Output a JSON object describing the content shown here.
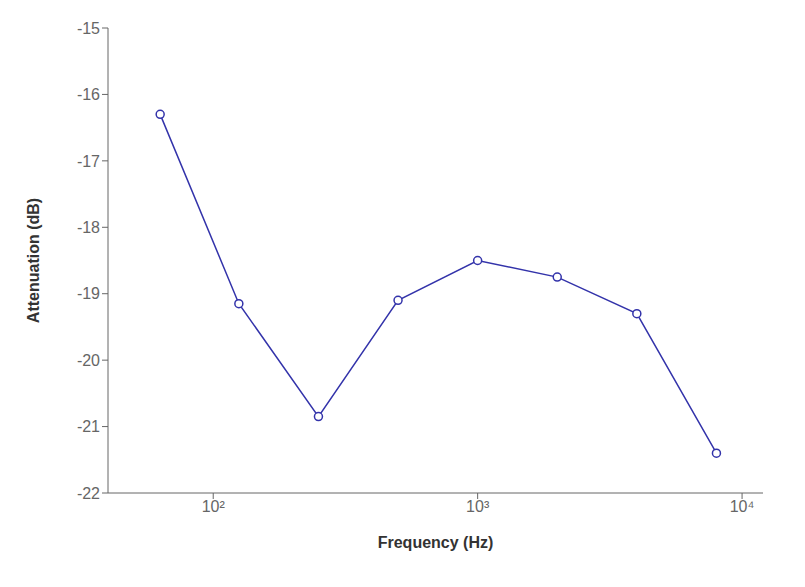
{
  "chart_data": {
    "type": "line",
    "x": [
      63,
      125,
      250,
      500,
      1000,
      2000,
      4000,
      8000
    ],
    "values": [
      -16.3,
      -19.15,
      -20.85,
      -19.1,
      -18.5,
      -18.75,
      -19.3,
      -21.4
    ],
    "color": "#3333AA",
    "marker": "circle",
    "xlabel": "Frequency (Hz)",
    "ylabel": "Attenuation (dB)",
    "xlim": [
      40,
      12000
    ],
    "ylim": [
      -22,
      -15
    ],
    "xticks": [
      {
        "value": 100,
        "label": "10²"
      },
      {
        "value": 1000,
        "label": "10³"
      },
      {
        "value": 10000,
        "label": "10⁴"
      }
    ],
    "yticks": [
      -22,
      -21,
      -20,
      -19,
      -18,
      -17,
      -16,
      -15
    ],
    "log": "x",
    "grid": false
  }
}
